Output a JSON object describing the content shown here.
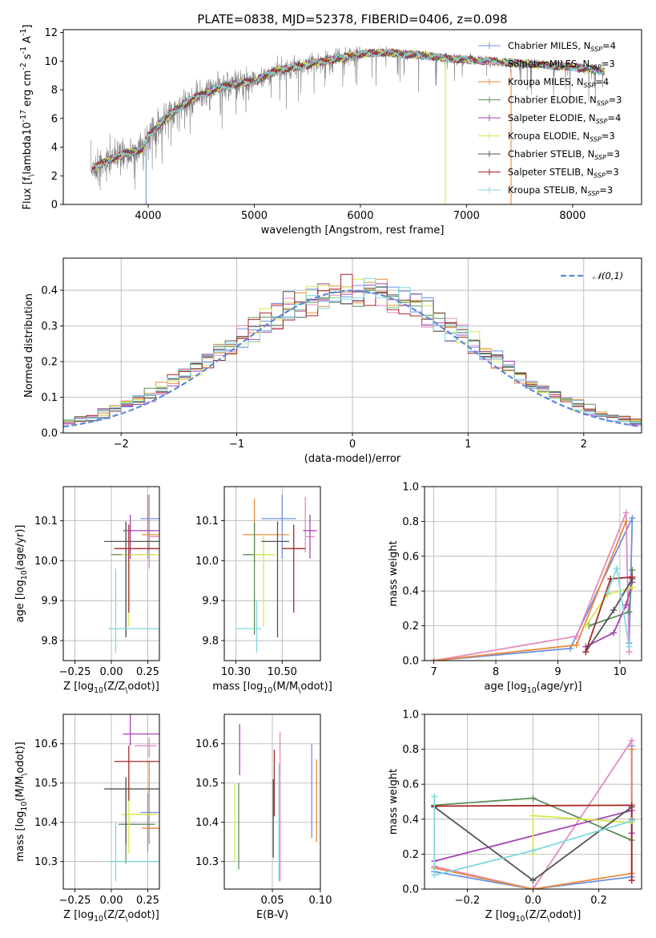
{
  "figure_title": "PLATE=0838, MJD=52378, FIBERID=0406, z=0.098",
  "models": [
    {
      "name": "Chabrier MILES",
      "nssp": "4",
      "color": "#6e92e0"
    },
    {
      "name": "Salpeter MILES",
      "nssp": "3",
      "color": "#e58ac0"
    },
    {
      "name": "Kroupa MILES",
      "nssp": "4",
      "color": "#ea8a3c"
    },
    {
      "name": "Chabrier ELODIE",
      "nssp": "3",
      "color": "#5c8f5c"
    },
    {
      "name": "Salpeter ELODIE",
      "nssp": "4",
      "color": "#a642b4"
    },
    {
      "name": "Kroupa ELODIE",
      "nssp": "3",
      "color": "#d6e84a"
    },
    {
      "name": "Chabrier STELIB",
      "nssp": "3",
      "color": "#555555"
    },
    {
      "name": "Salpeter STELIB",
      "nssp": "3",
      "color": "#a82828"
    },
    {
      "name": "Kroupa STELIB",
      "nssp": "3",
      "color": "#7ed8e0"
    }
  ],
  "chart_data": [
    {
      "id": "spectrum",
      "type": "line",
      "xlabel": "wavelength [Angstrom, rest frame]",
      "ylabel": "Flux [f$_\\lambda$10$^{-17}$ erg cm$^{-2}$ s$^{-1}$ A$^{-1}$]",
      "xlim": [
        3200,
        8650
      ],
      "ylim": [
        0,
        12.2
      ],
      "xticks": [
        4000,
        5000,
        6000,
        7000,
        8000
      ],
      "yticks": [
        0,
        2,
        4,
        6,
        8,
        10,
        12
      ],
      "grid": false,
      "legend_placement": "right",
      "continuum": {
        "x": [
          3460,
          3600,
          3800,
          3950,
          4000,
          4200,
          4400,
          4600,
          4800,
          5000,
          5200,
          5400,
          5600,
          5800,
          6000,
          6200,
          6400,
          6600,
          6800,
          7000,
          7200,
          7400,
          7600,
          7800,
          8000,
          8200,
          8300
        ],
        "y": [
          2.4,
          3.0,
          3.6,
          3.8,
          4.8,
          6.3,
          7.3,
          8.0,
          8.4,
          8.6,
          9.3,
          9.6,
          9.9,
          10.2,
          10.5,
          10.6,
          10.5,
          10.4,
          10.2,
          10.1,
          10.0,
          9.9,
          9.8,
          9.7,
          9.6,
          9.4,
          9.3
        ]
      },
      "observed_color": "#808080",
      "features": [
        {
          "label": "Kroupa MILES",
          "x": [
            7420,
            7420
          ],
          "y": [
            9.4,
            0
          ]
        },
        {
          "label": "Kroupa ELODIE",
          "x": [
            6800,
            6800
          ],
          "y": [
            10.1,
            0
          ]
        },
        {
          "label": "Chabrier MILES",
          "x": [
            3980,
            3980
          ],
          "y": [
            4.3,
            0
          ]
        }
      ]
    },
    {
      "id": "residual-histogram",
      "type": "step",
      "xlabel": "(data-model)/error",
      "ylabel": "Normed distribution",
      "xlim": [
        -2.5,
        2.5
      ],
      "ylim": [
        0,
        0.49
      ],
      "xticks": [
        -2,
        -1,
        0,
        1,
        2
      ],
      "yticks": [
        0.0,
        0.1,
        0.2,
        0.3,
        0.4
      ],
      "grid": true,
      "legend_placement": "top-right",
      "reference_curve": {
        "name": "$\\mathcal{N}(0,1)$",
        "mean": 0,
        "sigma": 1,
        "color": "#5b8ad6"
      },
      "bin_width": 0.1
    },
    {
      "id": "age-vs-Z",
      "type": "errorbar",
      "xlabel": "Z [log$_{10}$(Z/Z$_\\odot$)]",
      "ylabel": "age  [log$_{10}$(age/yr)]",
      "xlim": [
        -0.33,
        0.33
      ],
      "ylim": [
        9.75,
        10.185
      ],
      "xticks": [
        -0.25,
        0.0,
        0.25
      ],
      "yticks": [
        9.8,
        9.9,
        10.0,
        10.1
      ],
      "grid": true,
      "points": [
        {
          "model": 0,
          "x": 0.25,
          "y": 10.105,
          "xerr": [
            0.05,
            0.2
          ],
          "yerr": [
            0.1,
            0.06
          ]
        },
        {
          "model": 1,
          "x": 0.26,
          "y": 10.06,
          "xerr": [
            0.0,
            0.25
          ],
          "yerr": [
            0.08,
            0.1
          ]
        },
        {
          "model": 2,
          "x": 0.26,
          "y": 10.065,
          "xerr": [
            0.05,
            0.3
          ],
          "yerr": [
            0.04,
            0.1
          ]
        },
        {
          "model": 3,
          "x": 0.1,
          "y": 10.015,
          "xerr": [
            0.1,
            0.2
          ],
          "yerr": [
            0.2,
            0.08
          ]
        },
        {
          "model": 4,
          "x": 0.13,
          "y": 10.075,
          "xerr": [
            0.05,
            0.3
          ],
          "yerr": [
            0.07,
            0.04
          ]
        },
        {
          "model": 5,
          "x": 0.12,
          "y": 10.015,
          "xerr": [
            0.05,
            0.2
          ],
          "yerr": [
            0.18,
            0.05
          ]
        },
        {
          "model": 6,
          "x": 0.1,
          "y": 10.048,
          "xerr": [
            0.15,
            0.3
          ],
          "yerr": [
            0.24,
            0.05
          ]
        },
        {
          "model": 7,
          "x": 0.12,
          "y": 10.03,
          "xerr": [
            0.1,
            0.3
          ],
          "yerr": [
            0.16,
            0.06
          ]
        },
        {
          "model": 8,
          "x": 0.03,
          "y": 9.83,
          "xerr": [
            0.05,
            0.3
          ],
          "yerr": [
            0.06,
            0.15
          ]
        }
      ]
    },
    {
      "id": "age-vs-mass",
      "type": "errorbar",
      "xlabel": "mass [log$_{10}$(M/M$_\\odot$)]",
      "ylabel": "",
      "xlim": [
        10.25,
        10.665
      ],
      "ylim": [
        9.75,
        10.185
      ],
      "xticks": [
        10.3,
        10.5
      ],
      "yticks": [
        9.8,
        9.9,
        10.0,
        10.1
      ],
      "grid": true,
      "points": [
        {
          "model": 0,
          "x": 10.5,
          "y": 10.105,
          "xerr": [
            0.09,
            0.06
          ],
          "yerr": [
            0.1,
            0.06
          ]
        },
        {
          "model": 1,
          "x": 10.6,
          "y": 10.06,
          "xerr": [
            0.0,
            0.04
          ],
          "yerr": [
            0.04,
            0.1
          ]
        },
        {
          "model": 2,
          "x": 10.38,
          "y": 10.065,
          "xerr": [
            0.05,
            0.15
          ],
          "yerr": [
            0.07,
            0.09
          ]
        },
        {
          "model": 3,
          "x": 10.38,
          "y": 10.015,
          "xerr": [
            0.05,
            0.05
          ],
          "yerr": [
            0.2,
            0.08
          ]
        },
        {
          "model": 4,
          "x": 10.62,
          "y": 10.075,
          "xerr": [
            0.03,
            0.03
          ],
          "yerr": [
            0.07,
            0.04
          ]
        },
        {
          "model": 5,
          "x": 10.42,
          "y": 10.015,
          "xerr": [
            0.04,
            0.05
          ],
          "yerr": [
            0.18,
            0.05
          ]
        },
        {
          "model": 6,
          "x": 10.48,
          "y": 10.048,
          "xerr": [
            0.07,
            0.05
          ],
          "yerr": [
            0.24,
            0.05
          ]
        },
        {
          "model": 7,
          "x": 10.55,
          "y": 10.03,
          "xerr": [
            0.05,
            0.05
          ],
          "yerr": [
            0.16,
            0.06
          ]
        },
        {
          "model": 8,
          "x": 10.39,
          "y": 9.83,
          "xerr": [
            0.09,
            0.02
          ],
          "yerr": [
            0.06,
            0.07
          ]
        }
      ]
    },
    {
      "id": "mass-weight-vs-age",
      "type": "line",
      "xlabel": "age  [log$_{10}$(age/yr)]",
      "ylabel": "mass weight",
      "xlim": [
        6.85,
        10.35
      ],
      "ylim": [
        0,
        1.0
      ],
      "xticks": [
        7,
        8,
        9,
        10
      ],
      "yticks": [
        0.0,
        0.2,
        0.4,
        0.6,
        0.8,
        1.0
      ],
      "grid": true,
      "series": [
        {
          "model": 0,
          "x": [
            7.0,
            9.2,
            10.2,
            10.15
          ],
          "y": [
            0.0,
            0.07,
            0.82,
            0.1
          ]
        },
        {
          "model": 1,
          "x": [
            7.0,
            9.3,
            10.1,
            10.15
          ],
          "y": [
            0.0,
            0.14,
            0.85,
            0.05
          ]
        },
        {
          "model": 2,
          "x": [
            7.0,
            9.3,
            10.1
          ],
          "y": [
            0.0,
            0.09,
            0.8
          ]
        },
        {
          "model": 3,
          "x": [
            9.5,
            10.15,
            10.2
          ],
          "y": [
            0.2,
            0.28,
            0.52
          ]
        },
        {
          "model": 4,
          "x": [
            9.45,
            9.9,
            10.1,
            10.2
          ],
          "y": [
            0.08,
            0.16,
            0.32,
            0.45
          ]
        },
        {
          "model": 5,
          "x": [
            9.45,
            9.8,
            10.2
          ],
          "y": [
            0.2,
            0.38,
            0.42
          ]
        },
        {
          "model": 6,
          "x": [
            9.45,
            9.9,
            10.2
          ],
          "y": [
            0.05,
            0.29,
            0.47
          ]
        },
        {
          "model": 7,
          "x": [
            9.45,
            9.85,
            10.2
          ],
          "y": [
            0.05,
            0.47,
            0.48
          ]
        },
        {
          "model": 8,
          "x": [
            9.8,
            9.95,
            10.15
          ],
          "y": [
            0.39,
            0.53,
            0.08
          ]
        }
      ]
    },
    {
      "id": "mass-vs-Z",
      "type": "errorbar",
      "xlabel": "Z [log$_{10}$(Z/Z$_\\odot$)]",
      "ylabel": "mass [log$_{10}$(M/M$_\\odot$)]",
      "xlim": [
        -0.33,
        0.33
      ],
      "ylim": [
        10.23,
        10.675
      ],
      "xticks": [
        -0.25,
        0.0,
        0.25
      ],
      "yticks": [
        10.3,
        10.4,
        10.5,
        10.6
      ],
      "grid": true,
      "points": [
        {
          "model": 0,
          "x": 0.25,
          "y": 10.425,
          "xerr": [
            0.05,
            0.2
          ],
          "yerr": [
            0.1,
            0.05
          ]
        },
        {
          "model": 1,
          "x": 0.26,
          "y": 10.595,
          "xerr": [
            0.1,
            0.05
          ],
          "yerr": [
            0.03,
            0.02
          ]
        },
        {
          "model": 2,
          "x": 0.26,
          "y": 10.385,
          "xerr": [
            0.05,
            0.3
          ],
          "yerr": [
            0.04,
            0.17
          ]
        },
        {
          "model": 3,
          "x": 0.1,
          "y": 10.395,
          "xerr": [
            0.05,
            0.2
          ],
          "yerr": [
            0.1,
            0.11
          ]
        },
        {
          "model": 4,
          "x": 0.13,
          "y": 10.625,
          "xerr": [
            0.05,
            0.22
          ],
          "yerr": [
            0.03,
            0.05
          ]
        },
        {
          "model": 5,
          "x": 0.12,
          "y": 10.42,
          "xerr": [
            0.05,
            0.2
          ],
          "yerr": [
            0.1,
            0.08
          ]
        },
        {
          "model": 6,
          "x": 0.1,
          "y": 10.485,
          "xerr": [
            0.15,
            0.3
          ],
          "yerr": [
            0.14,
            0.03
          ]
        },
        {
          "model": 7,
          "x": 0.12,
          "y": 10.555,
          "xerr": [
            0.1,
            0.3
          ],
          "yerr": [
            0.1,
            0.04
          ]
        },
        {
          "model": 8,
          "x": 0.03,
          "y": 10.3,
          "xerr": [
            0.05,
            0.3
          ],
          "yerr": [
            0.05,
            0.1
          ]
        }
      ]
    },
    {
      "id": "mass-vs-ebv",
      "type": "errorbar",
      "xlabel": "E(B-V)",
      "ylabel": "",
      "xlim": [
        0.0,
        0.1
      ],
      "ylim": [
        10.23,
        10.675
      ],
      "xticks": [
        0.05,
        0.1
      ],
      "yticks": [
        10.3,
        10.4,
        10.5,
        10.6
      ],
      "grid": true,
      "points": [
        {
          "model": 0,
          "x": 0.091,
          "y": 10.48,
          "xerr": [
            0,
            0
          ],
          "yerr": [
            0.12,
            0.12
          ]
        },
        {
          "model": 1,
          "x": 0.058,
          "y": 10.44,
          "xerr": [
            0,
            0
          ],
          "yerr": [
            0.19,
            0.19
          ]
        },
        {
          "model": 2,
          "x": 0.096,
          "y": 10.455,
          "xerr": [
            0,
            0
          ],
          "yerr": [
            0.105,
            0.105
          ]
        },
        {
          "model": 3,
          "x": 0.015,
          "y": 10.39,
          "xerr": [
            0,
            0
          ],
          "yerr": [
            0.11,
            0.11
          ]
        },
        {
          "model": 4,
          "x": 0.016,
          "y": 10.585,
          "xerr": [
            0,
            0
          ],
          "yerr": [
            0.065,
            0.065
          ]
        },
        {
          "model": 5,
          "x": 0.011,
          "y": 10.4,
          "xerr": [
            0,
            0
          ],
          "yerr": [
            0.1,
            0.1
          ]
        },
        {
          "model": 6,
          "x": 0.051,
          "y": 10.41,
          "xerr": [
            0,
            0
          ],
          "yerr": [
            0.1,
            0.1
          ]
        },
        {
          "model": 7,
          "x": 0.052,
          "y": 10.5,
          "xerr": [
            0,
            0
          ],
          "yerr": [
            0.085,
            0.085
          ]
        },
        {
          "model": 8,
          "x": 0.057,
          "y": 10.4,
          "xerr": [
            0,
            0
          ],
          "yerr": [
            0.15,
            0.15
          ]
        }
      ]
    },
    {
      "id": "mass-weight-vs-Z",
      "type": "line",
      "xlabel": "Z [log$_{10}$(Z/Z$_\\odot$)]",
      "ylabel": "mass weight",
      "xlim": [
        -0.33,
        0.33
      ],
      "ylim": [
        0,
        1.0
      ],
      "xticks": [
        -0.2,
        0.0,
        0.2
      ],
      "yticks": [
        0.0,
        0.2,
        0.4,
        0.6,
        0.8,
        1.0
      ],
      "grid": true,
      "series": [
        {
          "model": 0,
          "x": [
            -0.3,
            0.0,
            0.3,
            0.3
          ],
          "y": [
            0.1,
            0.0,
            0.07,
            0.82
          ]
        },
        {
          "model": 1,
          "x": [
            -0.3,
            0.0,
            0.3,
            0.3
          ],
          "y": [
            0.13,
            0.0,
            0.85,
            0.05
          ]
        },
        {
          "model": 2,
          "x": [
            -0.3,
            0.0,
            0.3,
            0.3
          ],
          "y": [
            0.12,
            0.0,
            0.09,
            0.8
          ]
        },
        {
          "model": 3,
          "x": [
            -0.3,
            0.0,
            0.3,
            0.3
          ],
          "y": [
            0.48,
            0.52,
            0.28,
            0.4
          ]
        },
        {
          "model": 4,
          "x": [
            -0.3,
            0.3,
            0.3
          ],
          "y": [
            0.16,
            0.45,
            0.32
          ]
        },
        {
          "model": 5,
          "x": [
            0.0,
            0.0,
            0.3
          ],
          "y": [
            0.2,
            0.42,
            0.38
          ]
        },
        {
          "model": 6,
          "x": [
            -0.3,
            0.0,
            0.3
          ],
          "y": [
            0.47,
            0.05,
            0.47
          ]
        },
        {
          "model": 7,
          "x": [
            -0.3,
            0.3,
            0.3
          ],
          "y": [
            0.475,
            0.48,
            0.05
          ]
        },
        {
          "model": 8,
          "x": [
            -0.3,
            -0.3,
            0.0,
            0.3
          ],
          "y": [
            0.53,
            0.08,
            0.22,
            0.39
          ]
        }
      ]
    }
  ]
}
